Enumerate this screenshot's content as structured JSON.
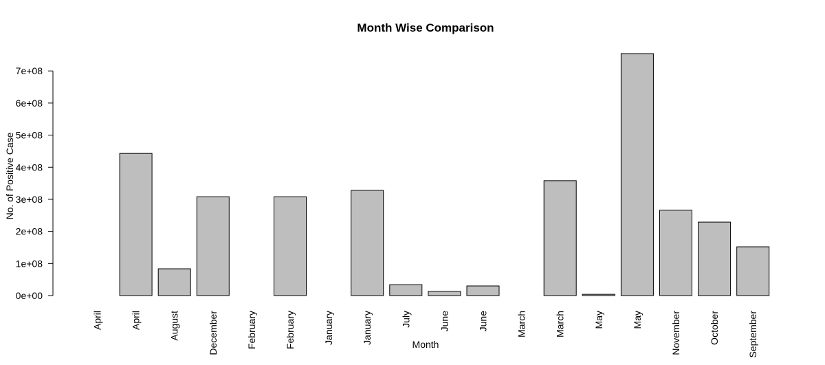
{
  "chart_data": {
    "type": "bar",
    "title": "Month Wise Comparison",
    "x_label": "Month",
    "y_label": "No. of Positive Case",
    "categories": [
      "April",
      "April",
      "August",
      "December",
      "February",
      "February",
      "January",
      "January",
      "July",
      "June",
      "June",
      "March",
      "March",
      "May",
      "May",
      "November",
      "October",
      "September"
    ],
    "values": [
      0,
      443000000,
      83500000,
      308000000,
      0,
      308000000,
      0,
      328000000,
      34000000,
      13000000,
      30000000,
      0,
      358000000,
      4000000,
      754000000,
      266000000,
      229000000,
      152000000
    ],
    "color": "#bebebe",
    "ylim": [
      0,
      784000000
    ],
    "yticks": [
      {
        "value": 0,
        "label": "0e+00"
      },
      {
        "value": 100000000,
        "label": "1e+08"
      },
      {
        "value": 200000000,
        "label": "2e+08"
      },
      {
        "value": 300000000,
        "label": "3e+08"
      },
      {
        "value": 400000000,
        "label": "4e+08"
      },
      {
        "value": 500000000,
        "label": "5e+08"
      },
      {
        "value": 600000000,
        "label": "6e+08"
      },
      {
        "value": 700000000,
        "label": "7e+08"
      }
    ]
  }
}
